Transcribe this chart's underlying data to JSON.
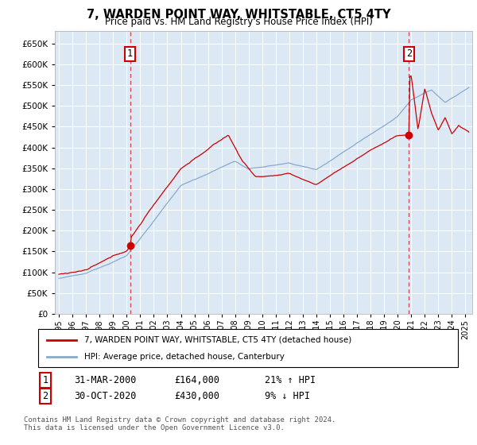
{
  "title": "7, WARDEN POINT WAY, WHITSTABLE, CT5 4TY",
  "subtitle": "Price paid vs. HM Land Registry's House Price Index (HPI)",
  "ylim": [
    0,
    680000
  ],
  "yticks": [
    0,
    50000,
    100000,
    150000,
    200000,
    250000,
    300000,
    350000,
    400000,
    450000,
    500000,
    550000,
    600000,
    650000
  ],
  "xlim_start": 1994.7,
  "xlim_end": 2025.5,
  "background_color": "#dce9f5",
  "grid_color": "#ffffff",
  "red_line_color": "#cc0000",
  "blue_line_color": "#88aacc",
  "marker1_date": 2000.25,
  "marker1_value": 164000,
  "marker2_date": 2020.83,
  "marker2_value": 430000,
  "legend_label_red": "7, WARDEN POINT WAY, WHITSTABLE, CT5 4TY (detached house)",
  "legend_label_blue": "HPI: Average price, detached house, Canterbury",
  "annotation1_date": "31-MAR-2000",
  "annotation1_price": "£164,000",
  "annotation1_hpi": "21% ↑ HPI",
  "annotation2_date": "30-OCT-2020",
  "annotation2_price": "£430,000",
  "annotation2_hpi": "9% ↓ HPI",
  "footer": "Contains HM Land Registry data © Crown copyright and database right 2024.\nThis data is licensed under the Open Government Licence v3.0."
}
